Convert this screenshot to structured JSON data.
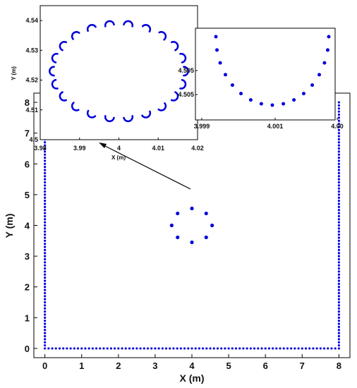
{
  "chart_data": [
    {
      "id": "main",
      "type": "scatter",
      "xlabel": "X (m)",
      "ylabel": "Y (m)",
      "xlim": [
        -0.3,
        8.3
      ],
      "ylim": [
        -0.3,
        8.3
      ],
      "xticks": [
        "0",
        "1",
        "2",
        "3",
        "4",
        "5",
        "6",
        "7",
        "8"
      ],
      "yticks": [
        "0",
        "1",
        "2",
        "3",
        "4",
        "5",
        "6",
        "7",
        "8"
      ],
      "boundary": {
        "x_min": 0,
        "x_max": 8,
        "y_min": 0,
        "y_max": 8,
        "spacing": 0.1
      },
      "center_ring": {
        "cx": 4.0,
        "cy": 4.0,
        "radius": 0.55,
        "count": 8
      },
      "color": "#0000dd",
      "grid": false
    },
    {
      "id": "inset-left",
      "type": "scatter",
      "xlabel": "X (m)",
      "ylabel": "Y (m)",
      "xlim": [
        3.98,
        4.02
      ],
      "ylim": [
        4.5,
        4.545
      ],
      "xticks": [
        "3.98",
        "3.99",
        "4",
        "4.01",
        "4.02"
      ],
      "yticks": [
        "4.5",
        "4.51",
        "4.52",
        "4.53",
        "4.54"
      ],
      "ellipse": {
        "cx": 4.0,
        "cy": 4.523,
        "rx": 0.0165,
        "ry": 0.0155,
        "arcs": 22
      },
      "color": "#0000dd"
    },
    {
      "id": "inset-right",
      "type": "scatter",
      "xticks": [
        "3.999",
        "4.001",
        "4.00"
      ],
      "yticks": [
        "4.505",
        "4.505"
      ],
      "arc": {
        "x_min": 3.9993,
        "x_max": 4.0024,
        "count": 17
      },
      "color": "#0000dd"
    }
  ]
}
